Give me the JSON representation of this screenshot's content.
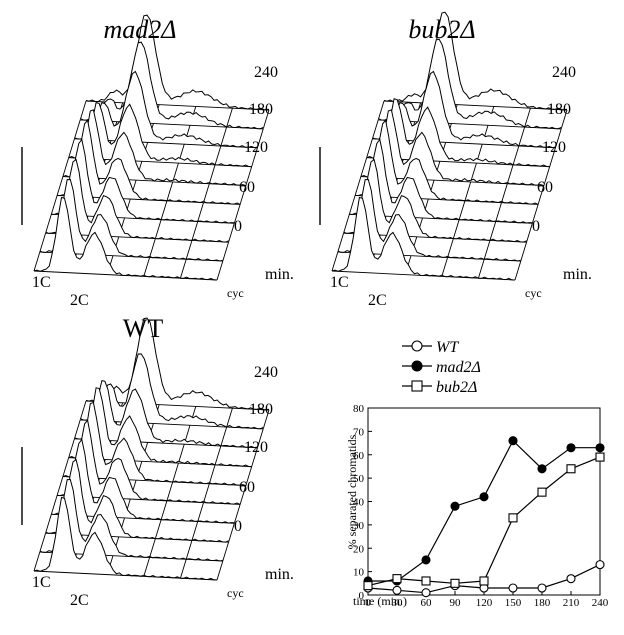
{
  "panels": [
    {
      "title": "mad2Δ",
      "title_italic": true,
      "peak1": "1C",
      "peak2": "2C",
      "times": [
        "240",
        "180",
        "120",
        "60",
        "0"
      ],
      "unit": "min.",
      "cyc": "cyc"
    },
    {
      "title": "bub2Δ",
      "title_italic": true,
      "peak1": "1C",
      "peak2": "2C",
      "times": [
        "240",
        "180",
        "120",
        "60",
        "0"
      ],
      "unit": "min.",
      "cyc": "cyc"
    },
    {
      "title": "WT",
      "title_italic": false,
      "peak1": "1C",
      "peak2": "2C",
      "times": [
        "240",
        "180",
        "120",
        "60",
        "0"
      ],
      "unit": "min.",
      "cyc": "cyc"
    }
  ],
  "chart_data": {
    "type": "line",
    "xlabel": "time (min.)",
    "ylabel": "% separated chromatids",
    "xlim": [
      0,
      240
    ],
    "ylim": [
      0,
      80
    ],
    "x": [
      0,
      30,
      60,
      90,
      120,
      150,
      180,
      210,
      240
    ],
    "yticks": [
      0,
      10,
      20,
      30,
      40,
      50,
      60,
      70,
      80
    ],
    "series": [
      {
        "name": "WT",
        "marker": "open-circle",
        "values": [
          3,
          2,
          1,
          4,
          3,
          3,
          3,
          7,
          13
        ]
      },
      {
        "name": "mad2Δ",
        "marker": "filled-circle",
        "values": [
          6,
          6,
          15,
          38,
          42,
          66,
          54,
          63,
          63
        ]
      },
      {
        "name": "bub2Δ",
        "marker": "open-square",
        "values": [
          4,
          7,
          6,
          5,
          6,
          33,
          44,
          54,
          59
        ]
      }
    ],
    "legend_position": "top-right"
  }
}
